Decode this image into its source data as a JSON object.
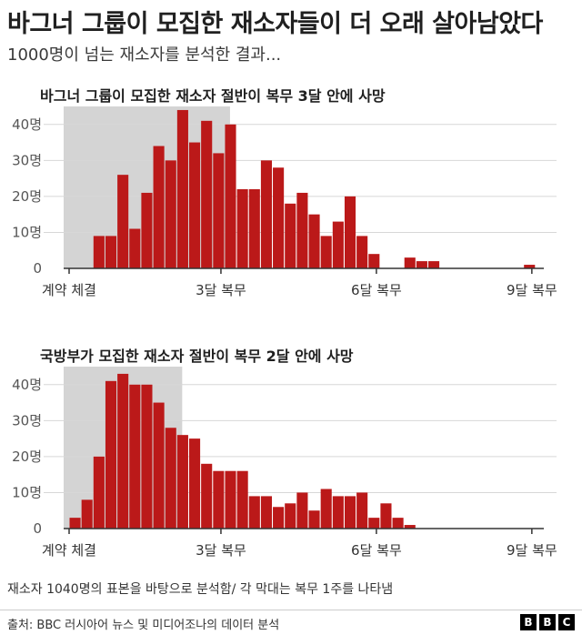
{
  "headline": "바그너 그룹이 모집한 재소자들이 더 오래 살아남았다",
  "subheadline": "1000명이 넘는 재소자를 분석한 결과...",
  "footnote": "재소자 1040명의 표본을 바탕으로 분석함/ 각 막대는 복무 1주를 나타냄",
  "source": "출처: BBC 러시아어 뉴스 및 미디어조나의 데이터 분석",
  "logo": [
    "B",
    "B",
    "C"
  ],
  "colors": {
    "bar": "#bb1919",
    "shade": "#d4d4d4",
    "grid": "#d7d7d7",
    "axis": "#333333"
  },
  "chart_data": [
    {
      "type": "bar",
      "title": "바그너 그룹이 모집한 재소자 절반이 복무 3달 안에 사망",
      "x_unit": "week of service",
      "shaded_range_weeks": [
        0,
        13
      ],
      "y_ticks": [
        "0",
        "10명",
        "20명",
        "30명",
        "40명"
      ],
      "ylim": [
        0,
        45
      ],
      "x_tick_labels": [
        {
          "week": 0,
          "label": "계약 체결"
        },
        {
          "week": 13,
          "label": "3달 복무"
        },
        {
          "week": 26,
          "label": "6달 복무"
        },
        {
          "week": 39,
          "label": "9달 복무"
        }
      ],
      "values": [
        0,
        0,
        9,
        9,
        26,
        11,
        21,
        34,
        30,
        44,
        35,
        41,
        32,
        40,
        22,
        22,
        30,
        28,
        18,
        21,
        15,
        9,
        13,
        20,
        9,
        4,
        0,
        0,
        3,
        2,
        2,
        0,
        0,
        0,
        0,
        0,
        0,
        0,
        1,
        0
      ],
      "grid": true
    },
    {
      "type": "bar",
      "title": "국방부가 모집한 재소자 절반이 복무 2달 안에 사망",
      "x_unit": "week of service",
      "shaded_range_weeks": [
        0,
        9
      ],
      "y_ticks": [
        "0",
        "10명",
        "20명",
        "30명",
        "40명"
      ],
      "ylim": [
        0,
        45
      ],
      "x_tick_labels": [
        {
          "week": 0,
          "label": "계약 체결"
        },
        {
          "week": 13,
          "label": "3달 복무"
        },
        {
          "week": 26,
          "label": "6달 복무"
        },
        {
          "week": 39,
          "label": "9달 복무"
        }
      ],
      "values": [
        3,
        8,
        20,
        41,
        43,
        40,
        40,
        35,
        28,
        26,
        25,
        18,
        16,
        16,
        16,
        9,
        9,
        6,
        7,
        10,
        5,
        11,
        9,
        9,
        10,
        3,
        7,
        3,
        1,
        0,
        0,
        0,
        0,
        0,
        0,
        0,
        0,
        0,
        0,
        0
      ],
      "grid": true
    }
  ]
}
